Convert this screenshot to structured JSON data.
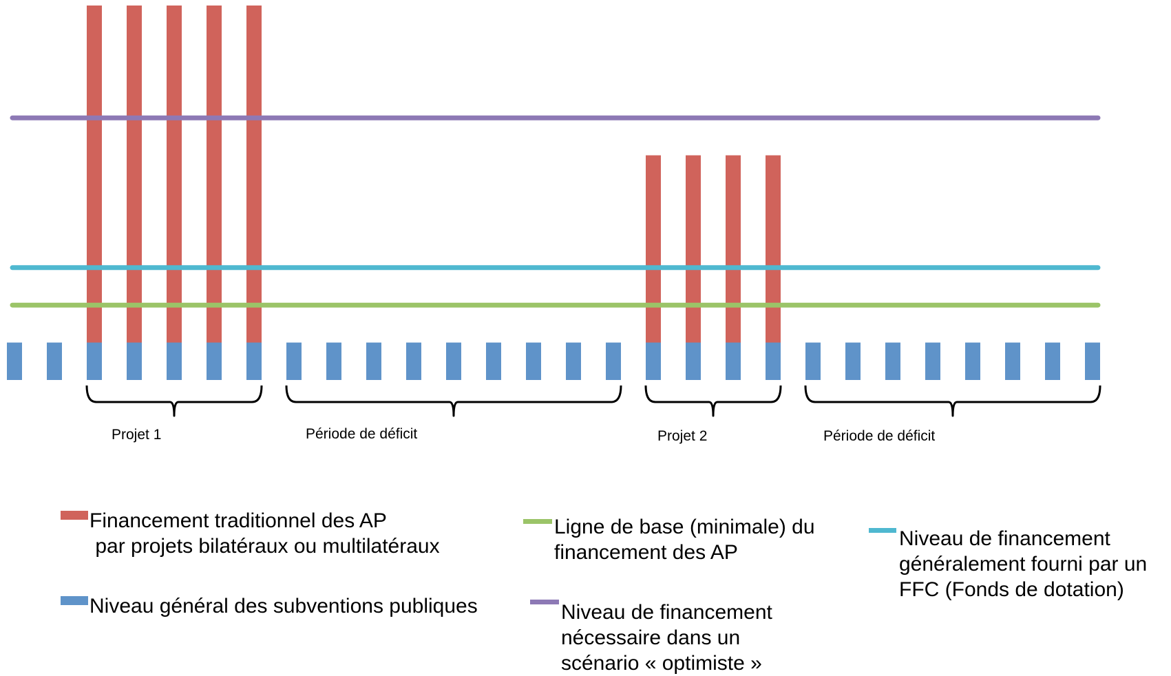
{
  "chart_data": {
    "type": "bar",
    "periods": 28,
    "red_bar_periods": [
      2,
      3,
      4,
      5,
      6,
      16,
      17,
      18,
      19
    ],
    "levels": {
      "project1_bars": 1.0,
      "project2_bars": 0.6,
      "optimistic_line": 0.7,
      "ffc_line": 0.3,
      "baseline_line": 0.2,
      "public_subsidies": 0.1
    },
    "colors": {
      "red": "#d0635b",
      "blue": "#5f93c9",
      "purple": "#8d79b5",
      "cyan": "#4fb8d0",
      "green": "#9bc468",
      "brace": "#000000"
    },
    "braces": [
      {
        "label": "Projet 1",
        "start_period": 2,
        "end_period": 6
      },
      {
        "label": "Période de déficit",
        "start_period": 7,
        "end_period": 15
      },
      {
        "label": "Projet 2",
        "start_period": 16,
        "end_period": 19
      },
      {
        "label": "Période de déficit",
        "start_period": 20,
        "end_period": 27
      }
    ]
  },
  "legend": {
    "red": {
      "label": "Financement traditionnel des AP\n par projets bilatéraux ou multilatéraux"
    },
    "blue": {
      "label": "Niveau général des subventions publiques"
    },
    "green": {
      "label": "Ligne de base (minimale) du\nfinancement des AP"
    },
    "purple": {
      "label": "Niveau de financement\nnécessaire dans un\nscénario « optimiste »"
    },
    "cyan": {
      "label": "Niveau de financement\ngénéralement fourni par un\nFFC (Fonds de dotation)"
    }
  }
}
